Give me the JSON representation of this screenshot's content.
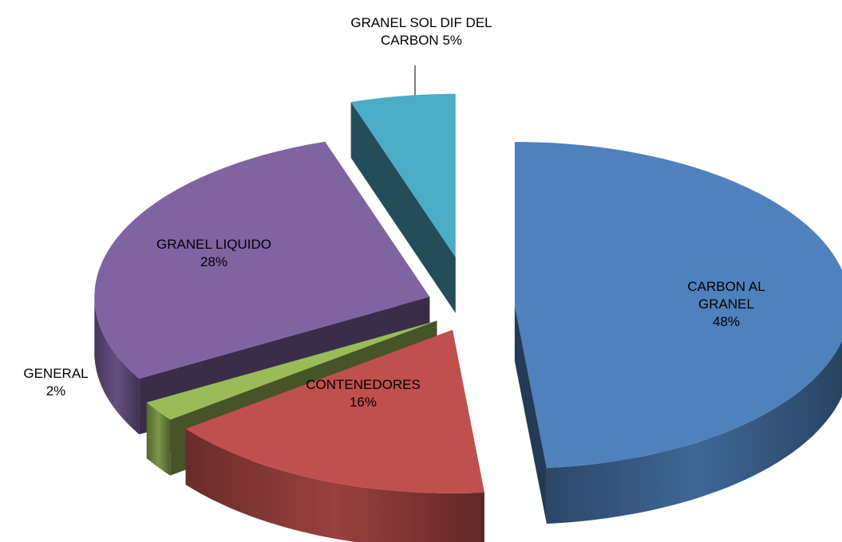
{
  "chart_data": {
    "type": "pie",
    "categories": [
      "CARBON AL GRANEL",
      "CONTENEDORES",
      "GENERAL",
      "GRANEL LIQUIDO",
      "GRANEL SOL DIF DEL CARBON"
    ],
    "values": [
      48,
      16,
      2,
      28,
      5
    ],
    "value_labels": [
      "48%",
      "16%",
      "2%",
      "28%",
      "5%"
    ],
    "colors": [
      "#4f81bd",
      "#c0504d",
      "#9bbb59",
      "#8064a2",
      "#4bacc6"
    ]
  }
}
